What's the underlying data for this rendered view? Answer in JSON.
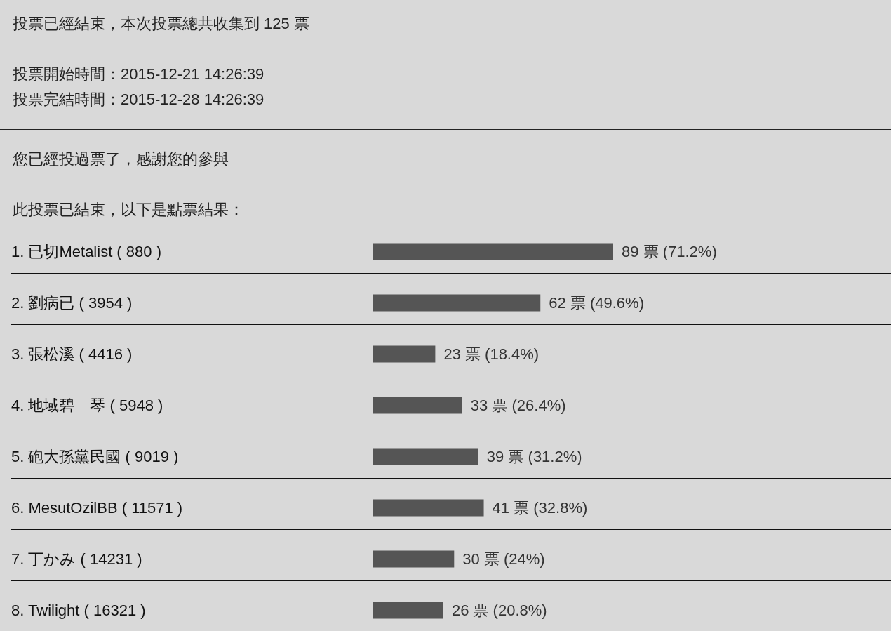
{
  "chart_data": {
    "type": "bar",
    "orientation": "horizontal",
    "title": "投票已經結束，本次投票總共收集到 125 票",
    "annotations": [
      "投票開始時間：2015-12-21 14:26:39",
      "投票完結時間：2015-12-28 14:26:39",
      "您已經投過票了，感謝您的參與",
      "此投票已結束，以下是點票結果："
    ],
    "categories": [
      "1. 已切Metalist ( 880 )",
      "2. 劉病已 ( 3954 )",
      "3. 張松溪 ( 4416 )",
      "4. 地域碧　琴 ( 5948 )",
      "5. 砲大孫黨民國 ( 9019 )",
      "6. MesutOzilBB ( 11571 )",
      "7. 丁かみ ( 14231 )",
      "8. Twilight ( 16321 )"
    ],
    "values": [
      89,
      62,
      23,
      33,
      39,
      41,
      30,
      26
    ],
    "value_labels": [
      "89 票 (71.2%)",
      "62 票 (49.6%)",
      "23 票 (18.4%)",
      "33 票 (26.4%)",
      "39 票 (31.2%)",
      "41 票 (32.8%)",
      "30 票 (24%)",
      "26 票 (20.8%)"
    ],
    "color": "#555555",
    "grid": "y",
    "tick_labels": "y"
  }
}
